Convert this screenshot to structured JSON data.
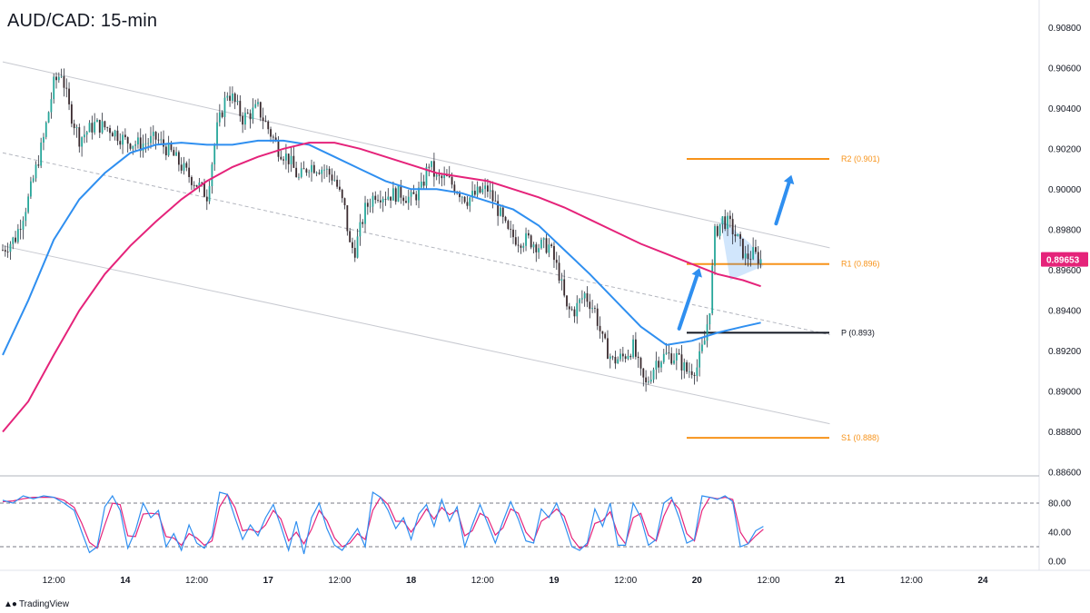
{
  "title": "AUD/CAD: 15-min",
  "brand": {
    "text": "TradingView",
    "icon": "tradingview-logo-icon"
  },
  "colors": {
    "ema_fast": "#2f8ff0",
    "ema_slow": "#e5237a",
    "level": "#f7931a",
    "pivot": "#131722",
    "candle_up": "#26a69a",
    "candle_down": "#3a2a2e",
    "price_tag": "#e5237a",
    "arrow": "#2f8ff0",
    "stoch_k": "#2f8ff0",
    "stoch_d": "#e5237a"
  },
  "chart_data": {
    "type": "candlestick",
    "title": "AUD/CAD: 15-min",
    "instrument": "AUD/CAD",
    "timeframe": "15-min",
    "ylim": [
      0.886,
      0.909
    ],
    "y_ticks": [
      "0.90800",
      "0.90600",
      "0.90400",
      "0.90200",
      "0.90000",
      "0.89800",
      "0.89600",
      "0.89400",
      "0.89200",
      "0.89000",
      "0.88800",
      "0.88600"
    ],
    "x_ticks": [
      "12:00",
      "14",
      "12:00",
      "17",
      "12:00",
      "18",
      "12:00",
      "19",
      "12:00",
      "20",
      "12:00",
      "21",
      "12:00",
      "24"
    ],
    "x_tick_index": [
      20,
      48,
      76,
      104,
      132,
      160,
      188,
      216,
      244,
      272,
      300,
      328,
      356,
      384
    ],
    "current_price": "0.89653",
    "price_path": [
      [
        0,
        0.897
      ],
      [
        5,
        0.8976
      ],
      [
        10,
        0.8995
      ],
      [
        16,
        0.9025
      ],
      [
        20,
        0.9052
      ],
      [
        23,
        0.9058
      ],
      [
        26,
        0.904
      ],
      [
        30,
        0.9025
      ],
      [
        36,
        0.9032
      ],
      [
        42,
        0.903
      ],
      [
        48,
        0.9024
      ],
      [
        54,
        0.9022
      ],
      [
        60,
        0.9025
      ],
      [
        66,
        0.9018
      ],
      [
        72,
        0.9008
      ],
      [
        78,
        0.9
      ],
      [
        80,
        0.8997
      ],
      [
        84,
        0.903
      ],
      [
        88,
        0.9048
      ],
      [
        90,
        0.9045
      ],
      [
        94,
        0.9035
      ],
      [
        100,
        0.904
      ],
      [
        104,
        0.903
      ],
      [
        108,
        0.902
      ],
      [
        112,
        0.9015
      ],
      [
        116,
        0.9005
      ],
      [
        120,
        0.9012
      ],
      [
        126,
        0.901
      ],
      [
        130,
        0.9005
      ],
      [
        134,
        0.899
      ],
      [
        136,
        0.8972
      ],
      [
        138,
        0.897
      ],
      [
        142,
        0.899
      ],
      [
        146,
        0.8998
      ],
      [
        150,
        0.8997
      ],
      [
        156,
        0.8998
      ],
      [
        160,
        0.8995
      ],
      [
        164,
        0.9
      ],
      [
        167,
        0.9013
      ],
      [
        170,
        0.9005
      ],
      [
        174,
        0.9005
      ],
      [
        178,
        0.9
      ],
      [
        182,
        0.8995
      ],
      [
        186,
        0.8998
      ],
      [
        190,
        0.9
      ],
      [
        194,
        0.899
      ],
      [
        198,
        0.8978
      ],
      [
        202,
        0.8975
      ],
      [
        206,
        0.8975
      ],
      [
        210,
        0.8972
      ],
      [
        214,
        0.8972
      ],
      [
        218,
        0.8958
      ],
      [
        221,
        0.894
      ],
      [
        224,
        0.894
      ],
      [
        228,
        0.8948
      ],
      [
        232,
        0.894
      ],
      [
        235,
        0.8925
      ],
      [
        239,
        0.8915
      ],
      [
        243,
        0.8917
      ],
      [
        247,
        0.8922
      ],
      [
        250,
        0.8908
      ],
      [
        252,
        0.8903
      ],
      [
        256,
        0.8915
      ],
      [
        260,
        0.8918
      ],
      [
        264,
        0.8917
      ],
      [
        268,
        0.891
      ],
      [
        272,
        0.8912
      ],
      [
        275,
        0.8925
      ],
      [
        277,
        0.8942
      ],
      [
        279,
        0.8978
      ],
      [
        282,
        0.8985
      ],
      [
        285,
        0.8982
      ],
      [
        288,
        0.8975
      ],
      [
        291,
        0.8966
      ],
      [
        294,
        0.8968
      ],
      [
        297,
        0.8965
      ]
    ],
    "series": [
      {
        "name": "",
        "kind": "ema",
        "color_key": "ema_fast",
        "points": [
          [
            0,
            0.8918
          ],
          [
            10,
            0.8945
          ],
          [
            20,
            0.8975
          ],
          [
            30,
            0.8995
          ],
          [
            40,
            0.9008
          ],
          [
            50,
            0.9018
          ],
          [
            60,
            0.9022
          ],
          [
            70,
            0.9023
          ],
          [
            80,
            0.9022
          ],
          [
            90,
            0.9022
          ],
          [
            100,
            0.9024
          ],
          [
            110,
            0.9024
          ],
          [
            120,
            0.9022
          ],
          [
            130,
            0.9016
          ],
          [
            140,
            0.901
          ],
          [
            150,
            0.9004
          ],
          [
            160,
            0.9
          ],
          [
            170,
            0.9
          ],
          [
            180,
            0.8998
          ],
          [
            190,
            0.8994
          ],
          [
            200,
            0.899
          ],
          [
            210,
            0.8982
          ],
          [
            220,
            0.897
          ],
          [
            230,
            0.8958
          ],
          [
            240,
            0.8945
          ],
          [
            250,
            0.8932
          ],
          [
            260,
            0.8923
          ],
          [
            270,
            0.8925
          ],
          [
            280,
            0.8929
          ],
          [
            290,
            0.8932
          ],
          [
            297,
            0.8934
          ]
        ]
      },
      {
        "name": "",
        "kind": "ema",
        "color_key": "ema_slow",
        "points": [
          [
            0,
            0.888
          ],
          [
            10,
            0.8895
          ],
          [
            20,
            0.8918
          ],
          [
            30,
            0.894
          ],
          [
            40,
            0.8958
          ],
          [
            50,
            0.8972
          ],
          [
            60,
            0.8984
          ],
          [
            70,
            0.8995
          ],
          [
            80,
            0.9004
          ],
          [
            90,
            0.9011
          ],
          [
            100,
            0.9016
          ],
          [
            110,
            0.902
          ],
          [
            120,
            0.9023
          ],
          [
            130,
            0.9023
          ],
          [
            140,
            0.902
          ],
          [
            150,
            0.9016
          ],
          [
            160,
            0.9012
          ],
          [
            170,
            0.9008
          ],
          [
            180,
            0.9006
          ],
          [
            190,
            0.9004
          ],
          [
            200,
            0.9
          ],
          [
            210,
            0.8996
          ],
          [
            220,
            0.8991
          ],
          [
            230,
            0.8985
          ],
          [
            240,
            0.8979
          ],
          [
            250,
            0.8973
          ],
          [
            260,
            0.8968
          ],
          [
            270,
            0.8963
          ],
          [
            280,
            0.8958
          ],
          [
            290,
            0.8955
          ],
          [
            297,
            0.8952
          ]
        ]
      }
    ],
    "channel": [
      {
        "style": "solid",
        "from": [
          0,
          0.9063
        ],
        "to": [
          324,
          0.8971
        ]
      },
      {
        "style": "dashed",
        "from": [
          0,
          0.9018
        ],
        "to": [
          324,
          0.8928
        ]
      },
      {
        "style": "solid",
        "from": [
          0,
          0.8972
        ],
        "to": [
          324,
          0.8884
        ]
      }
    ],
    "levels": [
      {
        "label": "R2 (0.901)",
        "value": 0.9015,
        "color_key": "level"
      },
      {
        "label": "R1 (0.896)",
        "value": 0.8963,
        "color_key": "level"
      },
      {
        "label": "P (0.893)",
        "value": 0.8929,
        "color_key": "pivot"
      },
      {
        "label": "S1 (0.888)",
        "value": 0.8877,
        "color_key": "level"
      }
    ],
    "highlight_box": [
      [
        281,
        0.8986
      ],
      [
        293,
        0.8973
      ],
      [
        298,
        0.8962
      ],
      [
        285,
        0.8955
      ]
    ],
    "arrows": [
      {
        "from": [
          265,
          0.8931
        ],
        "to": [
          273,
          0.8961
        ]
      },
      {
        "from": [
          303,
          0.8983
        ],
        "to": [
          309,
          0.9007
        ]
      }
    ],
    "stochastic": {
      "ylim": [
        0,
        100
      ],
      "y_ticks": [
        "80.00",
        "40.00",
        "0.00"
      ],
      "y_tick_values": [
        80,
        40,
        0
      ],
      "bands": [
        80,
        20
      ],
      "k_path": [
        [
          0,
          84
        ],
        [
          4,
          80
        ],
        [
          8,
          90
        ],
        [
          12,
          86
        ],
        [
          16,
          90
        ],
        [
          20,
          88
        ],
        [
          24,
          80
        ],
        [
          28,
          70
        ],
        [
          31,
          40
        ],
        [
          34,
          12
        ],
        [
          37,
          20
        ],
        [
          40,
          75
        ],
        [
          43,
          90
        ],
        [
          46,
          70
        ],
        [
          49,
          18
        ],
        [
          52,
          42
        ],
        [
          55,
          80
        ],
        [
          58,
          60
        ],
        [
          61,
          70
        ],
        [
          64,
          20
        ],
        [
          67,
          38
        ],
        [
          70,
          15
        ],
        [
          73,
          50
        ],
        [
          76,
          25
        ],
        [
          79,
          18
        ],
        [
          82,
          35
        ],
        [
          85,
          95
        ],
        [
          88,
          92
        ],
        [
          91,
          60
        ],
        [
          94,
          30
        ],
        [
          97,
          50
        ],
        [
          100,
          35
        ],
        [
          103,
          60
        ],
        [
          106,
          78
        ],
        [
          109,
          48
        ],
        [
          112,
          15
        ],
        [
          115,
          55
        ],
        [
          118,
          10
        ],
        [
          121,
          60
        ],
        [
          124,
          80
        ],
        [
          127,
          45
        ],
        [
          130,
          22
        ],
        [
          133,
          15
        ],
        [
          136,
          30
        ],
        [
          139,
          45
        ],
        [
          142,
          20
        ],
        [
          145,
          95
        ],
        [
          148,
          88
        ],
        [
          151,
          70
        ],
        [
          154,
          45
        ],
        [
          157,
          60
        ],
        [
          160,
          30
        ],
        [
          163,
          65
        ],
        [
          166,
          78
        ],
        [
          169,
          48
        ],
        [
          172,
          85
        ],
        [
          175,
          55
        ],
        [
          178,
          75
        ],
        [
          181,
          20
        ],
        [
          184,
          50
        ],
        [
          187,
          78
        ],
        [
          190,
          52
        ],
        [
          193,
          25
        ],
        [
          196,
          55
        ],
        [
          199,
          82
        ],
        [
          202,
          58
        ],
        [
          205,
          28
        ],
        [
          208,
          25
        ],
        [
          211,
          72
        ],
        [
          214,
          60
        ],
        [
          217,
          80
        ],
        [
          220,
          52
        ],
        [
          223,
          20
        ],
        [
          226,
          15
        ],
        [
          229,
          25
        ],
        [
          232,
          72
        ],
        [
          235,
          48
        ],
        [
          238,
          80
        ],
        [
          241,
          22
        ],
        [
          244,
          22
        ],
        [
          247,
          80
        ],
        [
          250,
          60
        ],
        [
          253,
          22
        ],
        [
          256,
          30
        ],
        [
          259,
          80
        ],
        [
          262,
          88
        ],
        [
          265,
          60
        ],
        [
          268,
          25
        ],
        [
          271,
          30
        ],
        [
          274,
          90
        ],
        [
          277,
          88
        ],
        [
          280,
          85
        ],
        [
          283,
          90
        ],
        [
          286,
          82
        ],
        [
          289,
          20
        ],
        [
          292,
          24
        ],
        [
          295,
          42
        ],
        [
          298,
          48
        ]
      ],
      "d_path": [
        [
          0,
          82
        ],
        [
          4,
          83
        ],
        [
          8,
          86
        ],
        [
          12,
          88
        ],
        [
          16,
          88
        ],
        [
          20,
          88
        ],
        [
          24,
          84
        ],
        [
          28,
          74
        ],
        [
          31,
          52
        ],
        [
          34,
          26
        ],
        [
          37,
          18
        ],
        [
          40,
          50
        ],
        [
          43,
          80
        ],
        [
          46,
          78
        ],
        [
          49,
          35
        ],
        [
          52,
          34
        ],
        [
          55,
          65
        ],
        [
          58,
          66
        ],
        [
          61,
          65
        ],
        [
          64,
          34
        ],
        [
          67,
          32
        ],
        [
          70,
          22
        ],
        [
          73,
          38
        ],
        [
          76,
          32
        ],
        [
          79,
          22
        ],
        [
          82,
          28
        ],
        [
          85,
          75
        ],
        [
          88,
          92
        ],
        [
          91,
          74
        ],
        [
          94,
          42
        ],
        [
          97,
          44
        ],
        [
          100,
          40
        ],
        [
          103,
          50
        ],
        [
          106,
          70
        ],
        [
          109,
          58
        ],
        [
          112,
          28
        ],
        [
          115,
          40
        ],
        [
          118,
          24
        ],
        [
          121,
          44
        ],
        [
          124,
          70
        ],
        [
          127,
          56
        ],
        [
          130,
          32
        ],
        [
          133,
          20
        ],
        [
          136,
          25
        ],
        [
          139,
          38
        ],
        [
          142,
          30
        ],
        [
          145,
          70
        ],
        [
          148,
          88
        ],
        [
          151,
          78
        ],
        [
          154,
          55
        ],
        [
          157,
          55
        ],
        [
          160,
          40
        ],
        [
          163,
          55
        ],
        [
          166,
          72
        ],
        [
          169,
          58
        ],
        [
          172,
          74
        ],
        [
          175,
          64
        ],
        [
          178,
          70
        ],
        [
          181,
          35
        ],
        [
          184,
          42
        ],
        [
          187,
          66
        ],
        [
          190,
          60
        ],
        [
          193,
          36
        ],
        [
          196,
          46
        ],
        [
          199,
          72
        ],
        [
          202,
          66
        ],
        [
          205,
          40
        ],
        [
          208,
          28
        ],
        [
          211,
          55
        ],
        [
          214,
          62
        ],
        [
          217,
          72
        ],
        [
          220,
          62
        ],
        [
          223,
          32
        ],
        [
          226,
          18
        ],
        [
          229,
          22
        ],
        [
          232,
          52
        ],
        [
          235,
          56
        ],
        [
          238,
          68
        ],
        [
          241,
          38
        ],
        [
          244,
          24
        ],
        [
          247,
          60
        ],
        [
          250,
          66
        ],
        [
          253,
          36
        ],
        [
          256,
          28
        ],
        [
          259,
          62
        ],
        [
          262,
          84
        ],
        [
          265,
          72
        ],
        [
          268,
          38
        ],
        [
          271,
          28
        ],
        [
          274,
          70
        ],
        [
          277,
          88
        ],
        [
          280,
          86
        ],
        [
          283,
          88
        ],
        [
          286,
          85
        ],
        [
          289,
          40
        ],
        [
          292,
          24
        ],
        [
          295,
          35
        ],
        [
          298,
          44
        ]
      ]
    }
  }
}
